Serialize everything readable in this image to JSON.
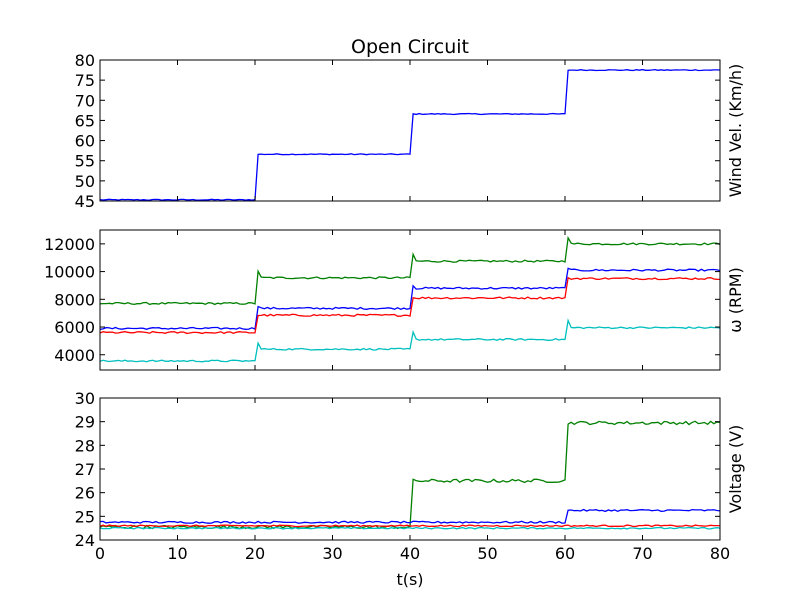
{
  "chart_data": {
    "type": "line",
    "title": "Open Circuit",
    "xlabel": "t(s)",
    "xlim": [
      0,
      80
    ],
    "xticks": [
      "0",
      "10",
      "20",
      "30",
      "40",
      "50",
      "60",
      "70",
      "80"
    ],
    "panels": [
      {
        "id": "wind",
        "ylabel": "Wind Vel. (Km/h)",
        "ylim": [
          45,
          80
        ],
        "yticks": [
          "45",
          "50",
          "55",
          "60",
          "65",
          "70",
          "75",
          "80"
        ],
        "series": [
          {
            "color": "#0000ff",
            "steps": [
              [
                0,
                45.3
              ],
              [
                20,
                56.6
              ],
              [
                40,
                66.6
              ],
              [
                60,
                77.5
              ]
            ],
            "end": 80,
            "noise": 0.12
          }
        ]
      },
      {
        "id": "rpm",
        "ylabel": "ω (RPM)",
        "ylim": [
          2900,
          13000
        ],
        "yticks": [
          "4000",
          "6000",
          "8000",
          "10000",
          "12000"
        ],
        "series": [
          {
            "color": "#008000",
            "steps": [
              [
                0,
                7700
              ],
              [
                20,
                9550
              ],
              [
                40,
                10750
              ],
              [
                60,
                12000
              ]
            ],
            "end": 80,
            "noise": 70,
            "spike": 500
          },
          {
            "color": "#0000ff",
            "steps": [
              [
                0,
                5900
              ],
              [
                20,
                7350
              ],
              [
                40,
                8800
              ],
              [
                60,
                10100
              ]
            ],
            "end": 80,
            "noise": 70,
            "spike": 200
          },
          {
            "color": "#ff0000",
            "steps": [
              [
                0,
                5600
              ],
              [
                20,
                6850
              ],
              [
                40,
                8100
              ],
              [
                60,
                9500
              ]
            ],
            "end": 80,
            "noise": 70,
            "spike": 0
          },
          {
            "color": "#00bfbf",
            "steps": [
              [
                0,
                3550
              ],
              [
                20,
                4400
              ],
              [
                40,
                5100
              ],
              [
                60,
                5950
              ]
            ],
            "end": 80,
            "noise": 60,
            "spike": 500
          }
        ]
      },
      {
        "id": "voltage",
        "ylabel": "Voltage (V)",
        "ylim": [
          24,
          30
        ],
        "yticks": [
          "24",
          "25",
          "26",
          "27",
          "28",
          "29",
          "30"
        ],
        "series": [
          {
            "color": "#008000",
            "steps": [
              [
                0,
                24.55
              ],
              [
                40,
                26.5
              ],
              [
                60,
                28.95
              ]
            ],
            "end": 80,
            "noise": 0.07
          },
          {
            "color": "#0000ff",
            "steps": [
              [
                0,
                24.75
              ],
              [
                60,
                25.25
              ]
            ],
            "end": 80,
            "noise": 0.04
          },
          {
            "color": "#ff0000",
            "steps": [
              [
                0,
                24.6
              ]
            ],
            "end": 80,
            "noise": 0.03
          },
          {
            "color": "#00bfbf",
            "steps": [
              [
                0,
                24.5
              ]
            ],
            "end": 80,
            "noise": 0.03
          }
        ]
      }
    ]
  }
}
